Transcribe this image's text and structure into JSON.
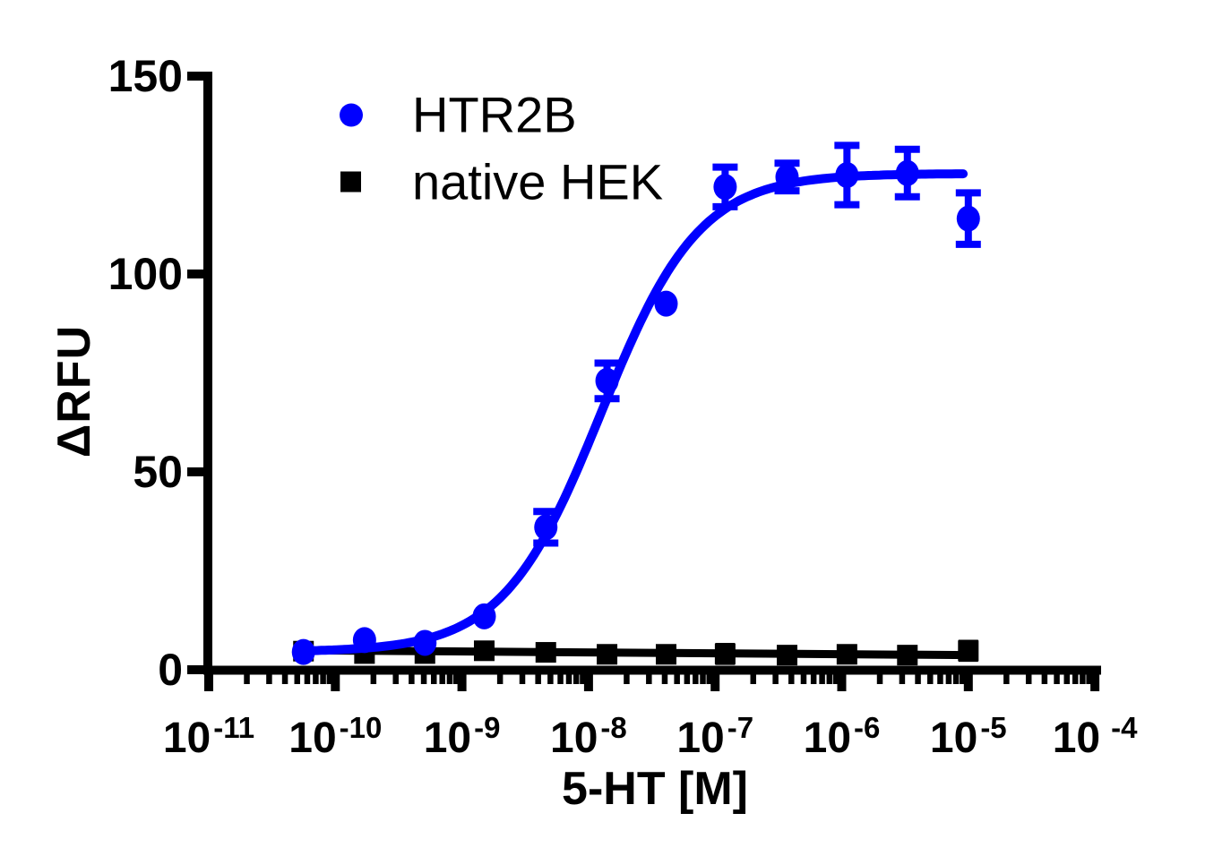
{
  "chart_data": {
    "type": "scatter",
    "title": "",
    "xlabel": "5-HT [M]",
    "ylabel": "ΔRFU",
    "x_scale": "log",
    "x_unit": "M",
    "ylim": [
      0,
      150
    ],
    "y_ticks": [
      0,
      50,
      100,
      150
    ],
    "x_tick_exponents": [
      -11,
      -10,
      -9,
      -8,
      -7,
      -6,
      -5,
      -4
    ],
    "grid": "off",
    "legend_position": "inside-top-left",
    "x": [
      5.6e-11,
      1.7e-10,
      5.1e-10,
      1.5e-09,
      4.6e-09,
      1.4e-08,
      4.1e-08,
      1.2e-07,
      3.7e-07,
      1.1e-06,
      3.3e-06,
      1e-05
    ],
    "series": [
      {
        "name": "HTR2B",
        "marker": "circle",
        "color": "#0000FF",
        "values": [
          4.5,
          7.5,
          6.8,
          13.5,
          36,
          73,
          92.5,
          122,
          124.5,
          125,
          125.5,
          114
        ],
        "errors": [
          0,
          0,
          0,
          0,
          4,
          4.5,
          0,
          5,
          3.5,
          7.5,
          6,
          6.5
        ],
        "fit": {
          "type": "sigmoid",
          "bottom": 4.5,
          "top": 125.4,
          "logEC50": -7.9,
          "hill": 1.12
        }
      },
      {
        "name": "native HEK",
        "marker": "square",
        "color": "#000000",
        "values": [
          4.7,
          4.1,
          4.1,
          4.8,
          4.4,
          3.9,
          3.9,
          4.0,
          3.7,
          3.9,
          3.7,
          4.8
        ],
        "errors": [
          0,
          0,
          0,
          1.5,
          1.5,
          1.5,
          1.5,
          2,
          1.5,
          1.5,
          1.5,
          2
        ],
        "fit": {
          "type": "line",
          "y_start": 4.9,
          "y_end": 3.7
        }
      }
    ]
  }
}
